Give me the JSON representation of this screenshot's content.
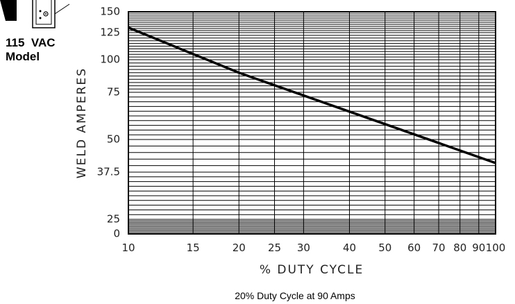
{
  "model": {
    "line1": "115  VAC",
    "line2": "Model",
    "icon": "outlet-plug-icon"
  },
  "colors": {
    "grid": "#000000",
    "series": "#000000",
    "text": "#222222"
  },
  "chart_data": {
    "type": "line",
    "title": "",
    "caption": "20% Duty Cycle at 90 Amps",
    "xlabel": "% DUTY CYCLE",
    "ylabel": "WELD AMPERES",
    "x_scale": "log",
    "xlim": [
      10,
      100
    ],
    "ylim": [
      0,
      150
    ],
    "x_ticks": [
      10,
      15,
      20,
      25,
      30,
      40,
      50,
      60,
      70,
      80,
      90,
      100
    ],
    "y_ticks": [
      "0",
      "25",
      "37.5",
      "50",
      "75",
      "100",
      "125",
      "150"
    ],
    "grid": true,
    "series": [
      {
        "x": [
          10,
          20,
          100
        ],
        "y": [
          131,
          90,
          41
        ]
      }
    ]
  }
}
